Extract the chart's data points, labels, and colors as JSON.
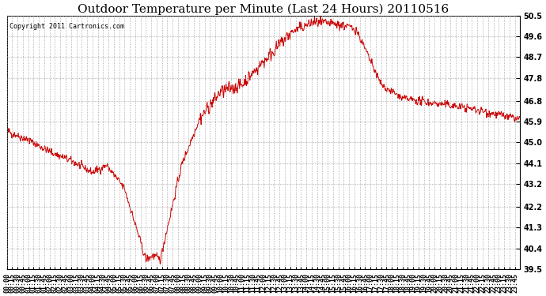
{
  "title": "Outdoor Temperature per Minute (Last 24 Hours) 20110516",
  "copyright": "Copyright 2011 Cartronics.com",
  "ylabel_right": [
    "50.5",
    "49.6",
    "48.7",
    "47.8",
    "46.8",
    "45.9",
    "45.0",
    "44.1",
    "43.2",
    "42.2",
    "41.3",
    "40.4",
    "39.5"
  ],
  "ylim": [
    39.5,
    50.5
  ],
  "line_color": "#cc0000",
  "bg_color": "#ffffff",
  "grid_color": "#999999",
  "title_fontsize": 11,
  "tick_fontsize": 6,
  "copyright_fontsize": 6
}
